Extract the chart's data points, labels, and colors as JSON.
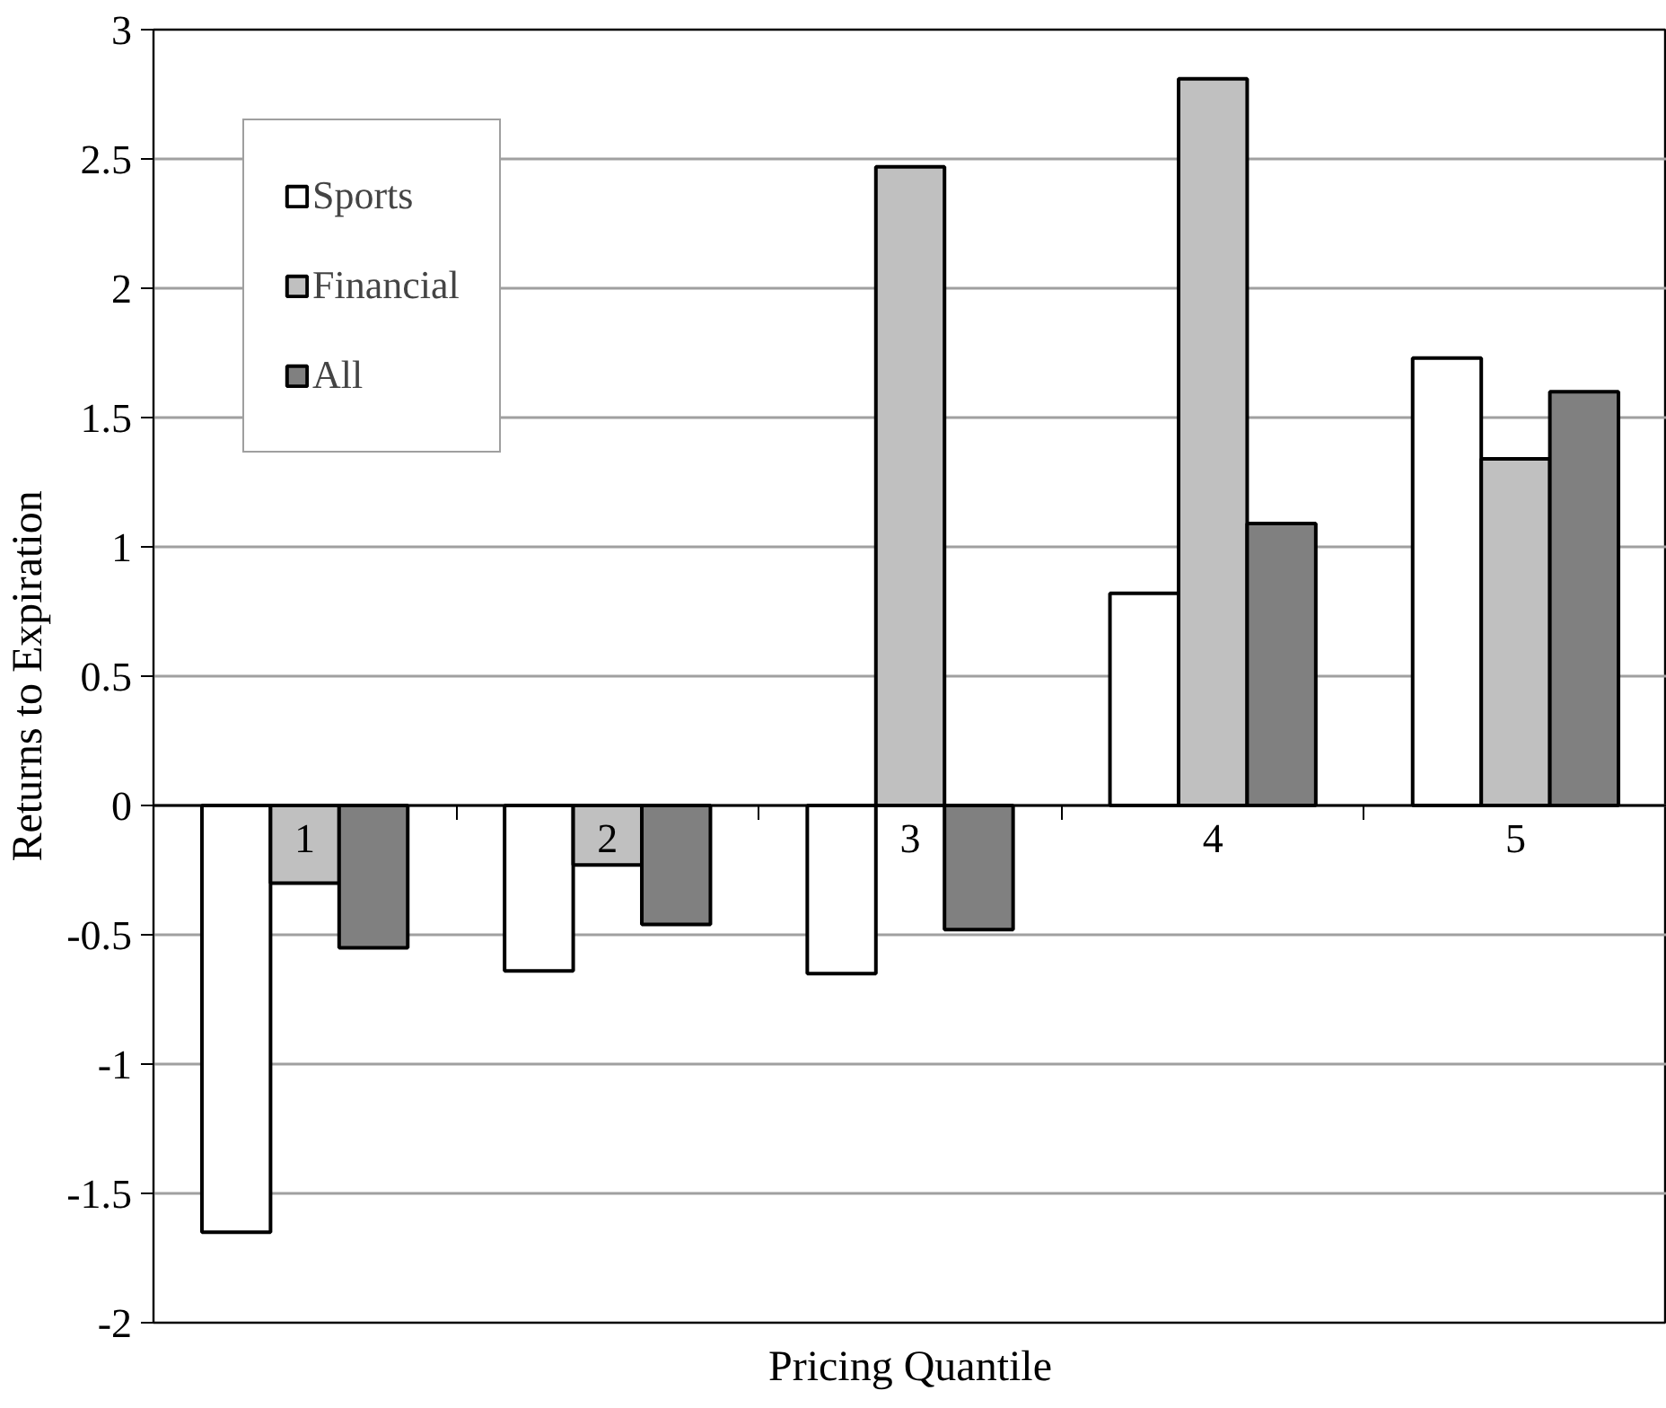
{
  "chart_data": {
    "type": "bar",
    "xlabel": "Pricing Quantile",
    "ylabel": "Returns to Expiration",
    "categories": [
      "1",
      "2",
      "3",
      "4",
      "5"
    ],
    "series": [
      {
        "name": "Sports",
        "color": "#ffffff",
        "values": [
          -1.65,
          -0.64,
          -0.65,
          0.82,
          1.73
        ]
      },
      {
        "name": "Financial",
        "color": "#c0c0c0",
        "values": [
          -0.3,
          -0.23,
          2.47,
          2.81,
          1.34
        ]
      },
      {
        "name": "All",
        "color": "#808080",
        "values": [
          -0.55,
          -0.46,
          -0.48,
          1.09,
          1.6
        ]
      }
    ],
    "ylim": [
      -2,
      3
    ],
    "yticks": [
      -2,
      -1.5,
      -1,
      -0.5,
      0,
      0.5,
      1,
      1.5,
      2,
      2.5,
      3
    ],
    "grid": "y",
    "legend": "top left"
  }
}
